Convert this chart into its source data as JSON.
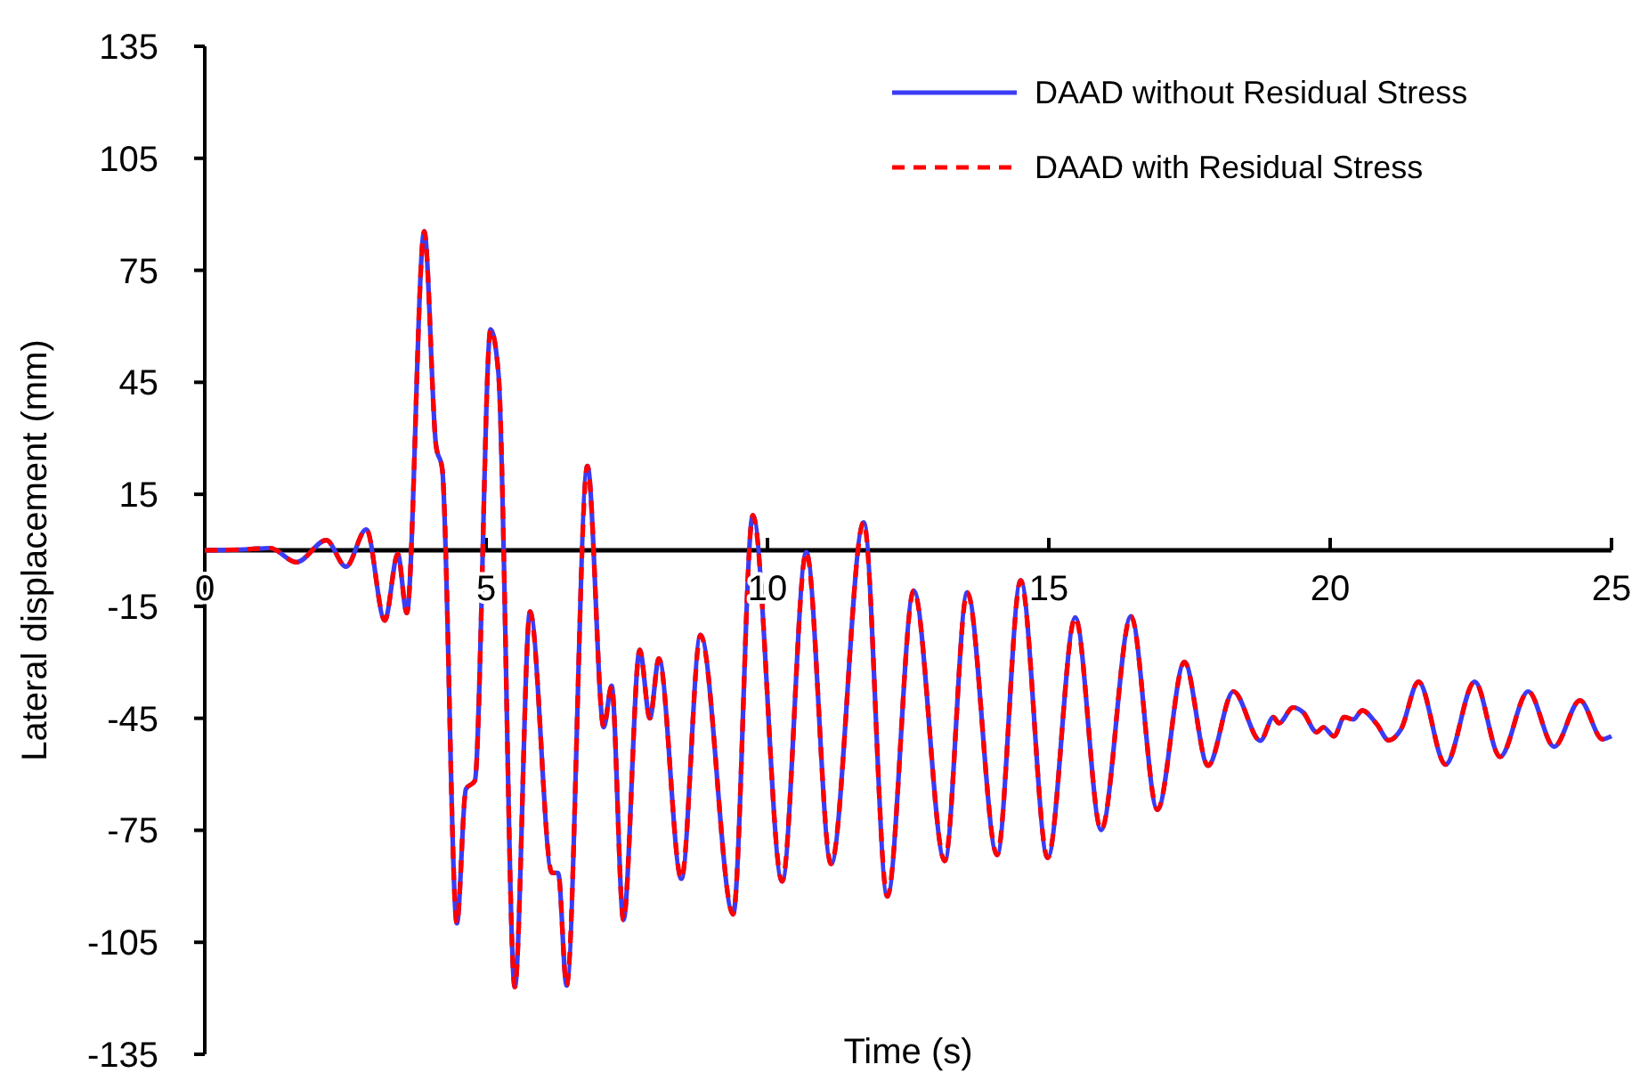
{
  "chart_data": {
    "type": "line",
    "xlabel": "Time (s)",
    "ylabel": "Lateral displacement (mm)",
    "xlim": [
      0,
      25
    ],
    "xticks": [
      0,
      5,
      10,
      15,
      20,
      25
    ],
    "ylim": [
      -135,
      135
    ],
    "yticks": [
      -135,
      -105,
      -75,
      -45,
      -15,
      15,
      45,
      75,
      105,
      135
    ],
    "grid": false,
    "legend": "top right",
    "marker": "none",
    "x": [
      0,
      0.8,
      1.16,
      1.63,
      2.16,
      2.51,
      2.87,
      3.2,
      3.43,
      3.59,
      3.9,
      4.11,
      4.22,
      4.48,
      4.64,
      4.8,
      5.08,
      5.22,
      5.51,
      5.78,
      6.17,
      6.28,
      6.43,
      6.8,
      7.09,
      7.23,
      7.44,
      7.73,
      7.91,
      8.07,
      8.47,
      8.81,
      9.39,
      9.74,
      10.26,
      10.69,
      11.13,
      11.71,
      12.13,
      12.6,
      13.15,
      13.55,
      14.08,
      14.5,
      14.98,
      15.47,
      15.93,
      16.46,
      16.93,
      17.41,
      17.83,
      18.28,
      18.76,
      18.99,
      19.09,
      19.34,
      19.52,
      19.76,
      19.88,
      20.07,
      20.25,
      20.41,
      20.57,
      20.83,
      21.04,
      21.26,
      21.57,
      22.05,
      22.57,
      23.02,
      23.52,
      23.98,
      24.44,
      24.84,
      25
    ],
    "series": [
      {
        "name": "DAAD without Residual Stress",
        "color": "#3b3bf5",
        "line_style": "solid",
        "values": [
          0,
          0.3,
          0.6,
          -3.2,
          2.7,
          -4.4,
          5.6,
          -18.8,
          -1,
          -16.8,
          85.4,
          28,
          21.8,
          -99.9,
          -64,
          -61.7,
          59.2,
          47.2,
          -117,
          -16.4,
          -86.4,
          -86.4,
          -116.6,
          22.6,
          -47.4,
          -36.3,
          -99,
          -26.7,
          -45,
          -29,
          -88,
          -22.7,
          -97.5,
          9.4,
          -88.7,
          -0.5,
          -84,
          7.5,
          -92.7,
          -10.8,
          -83.2,
          -11.3,
          -81.6,
          -8.1,
          -82.4,
          -18,
          -74.9,
          -17.7,
          -69.5,
          -29.9,
          -57.7,
          -37.8,
          -51,
          -44.7,
          -46.3,
          -42.1,
          -43.4,
          -48.7,
          -47.4,
          -49.8,
          -44.7,
          -45.3,
          -42.9,
          -46.6,
          -50.9,
          -47.9,
          -35.2,
          -57.4,
          -35.2,
          -55.3,
          -37.8,
          -52.6,
          -40.2,
          -50.6,
          -49.8
        ]
      },
      {
        "name": "DAAD with Residual Stress",
        "color": "#ff0000",
        "line_style": "dashed",
        "values": [
          0,
          0.3,
          0.6,
          -3.2,
          2.7,
          -4.4,
          5.6,
          -18.8,
          -1,
          -16.8,
          85.4,
          28,
          21.8,
          -99.9,
          -64,
          -61.7,
          59.2,
          47.2,
          -117,
          -16.4,
          -86.4,
          -86.4,
          -116.6,
          22.6,
          -47.4,
          -36.3,
          -99,
          -26.7,
          -45,
          -29,
          -88,
          -22.7,
          -97.5,
          9.4,
          -88.7,
          -0.5,
          -84,
          7.5,
          -92.7,
          -10.8,
          -83.2,
          -11.3,
          -81.6,
          -8.1,
          -82.4,
          -18,
          -74.9,
          -17.7,
          -69.5,
          -29.9,
          -57.7,
          -37.8,
          -51,
          -44.7,
          -46.3,
          -42.1,
          -43.4,
          -48.7,
          -47.4,
          -49.8,
          -44.7,
          -45.3,
          -42.9,
          -46.6,
          -50.9,
          -47.9,
          -35.2,
          -57.4,
          -35.2,
          -55.3,
          -37.8,
          -52.6,
          -40.2,
          -50.6,
          -49.8
        ]
      }
    ]
  }
}
